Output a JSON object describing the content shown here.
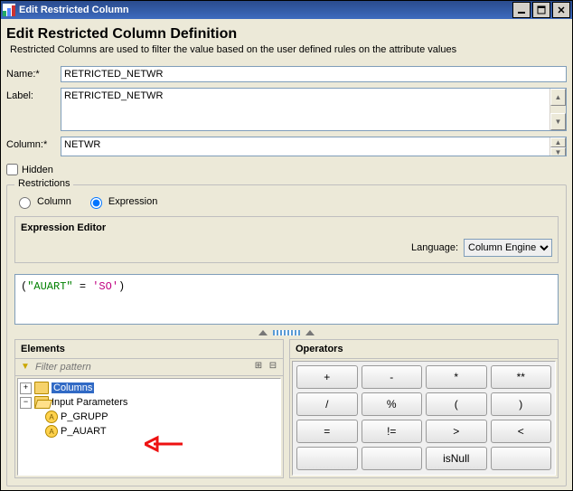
{
  "window": {
    "title": "Edit Restricted Column"
  },
  "header": {
    "title": "Edit Restricted Column Definition",
    "description": "Restricted Columns are used to filter the value based on the user defined rules on the attribute values"
  },
  "form": {
    "name_label": "Name:*",
    "name_value": "RETRICTED_NETWR",
    "label_label": "Label:",
    "label_value": "RETRICTED_NETWR",
    "column_label": "Column:*",
    "column_value": "NETWR",
    "hidden_label": "Hidden"
  },
  "restrictions": {
    "legend": "Restrictions",
    "radio_column": "Column",
    "radio_expression": "Expression",
    "selected": "expression",
    "editor_legend": "Expression Editor",
    "language_label": "Language:",
    "language_value": "Column Engine",
    "expression_parts": {
      "open": "(",
      "field": "\"AUART\"",
      "eq": " = ",
      "lit": "'SO'",
      "close": ")"
    }
  },
  "elements": {
    "title": "Elements",
    "filter_placeholder": "Filter pattern",
    "columns_label": "Columns",
    "ip_label": "Input Parameters",
    "leaf1": "P_GRUPP",
    "leaf2": "P_AUART"
  },
  "operators": {
    "title": "Operators",
    "rows": [
      [
        "+",
        "-",
        "*",
        "**"
      ],
      [
        "/",
        "%",
        "(",
        ")"
      ],
      [
        "=",
        "!=",
        ">",
        "<"
      ],
      [
        "",
        "",
        "isNull",
        ""
      ]
    ]
  }
}
